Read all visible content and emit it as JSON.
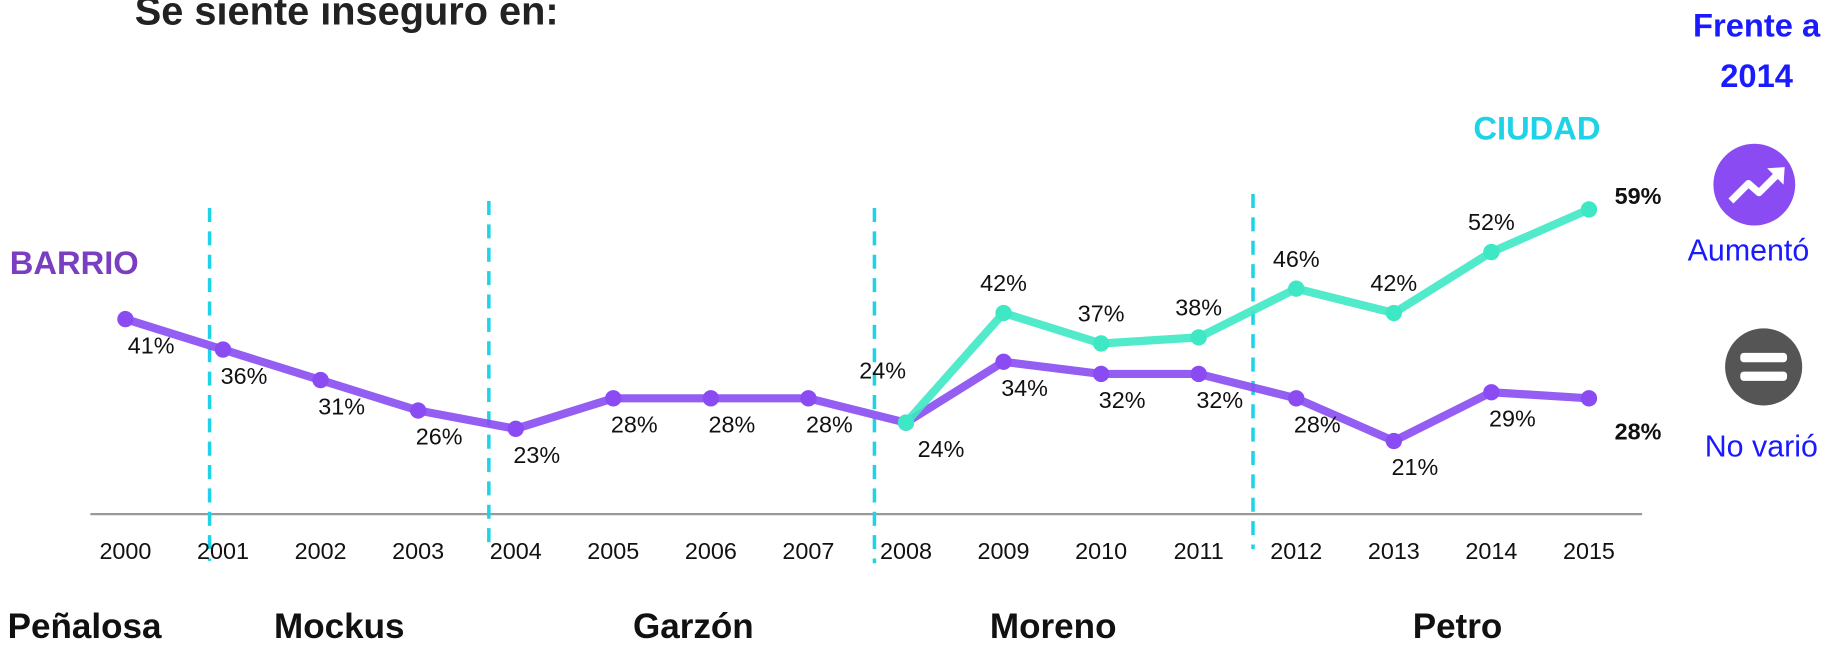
{
  "chart_data": {
    "type": "line",
    "title": "Se siente inseguro en:",
    "categories": [
      "2000",
      "2001",
      "2002",
      "2003",
      "2004",
      "2005",
      "2006",
      "2007",
      "2008",
      "2009",
      "2010",
      "2011",
      "2012",
      "2013",
      "2014",
      "2015"
    ],
    "series": [
      {
        "name": "BARRIO",
        "color": "#8a4cf2",
        "values": [
          41,
          36,
          31,
          26,
          23,
          28,
          28,
          28,
          24,
          34,
          32,
          32,
          28,
          21,
          29,
          28
        ],
        "value_labels": [
          "41%",
          "36%",
          "31%",
          "26%",
          "23%",
          "28%",
          "28%",
          "28%",
          "24%",
          "34%",
          "32%",
          "32%",
          "28%",
          "21%",
          "29%",
          "28%"
        ]
      },
      {
        "name": "CIUDAD",
        "color": "#3ee8c4",
        "values": [
          null,
          null,
          null,
          null,
          null,
          null,
          null,
          null,
          24,
          42,
          37,
          38,
          46,
          42,
          52,
          59
        ],
        "value_labels": [
          null,
          null,
          null,
          null,
          null,
          null,
          null,
          null,
          "24%",
          "42%",
          "37%",
          "38%",
          "46%",
          "42%",
          "52%",
          "59%"
        ]
      }
    ],
    "ylim": [
      9,
      60
    ],
    "periods": [
      "Peñalosa",
      "Mockus",
      "Garzón",
      "Moreno",
      "Petro"
    ],
    "comparison_title": [
      "Frente a",
      "2014"
    ],
    "changes": [
      "Aumentó",
      "No varió"
    ]
  }
}
